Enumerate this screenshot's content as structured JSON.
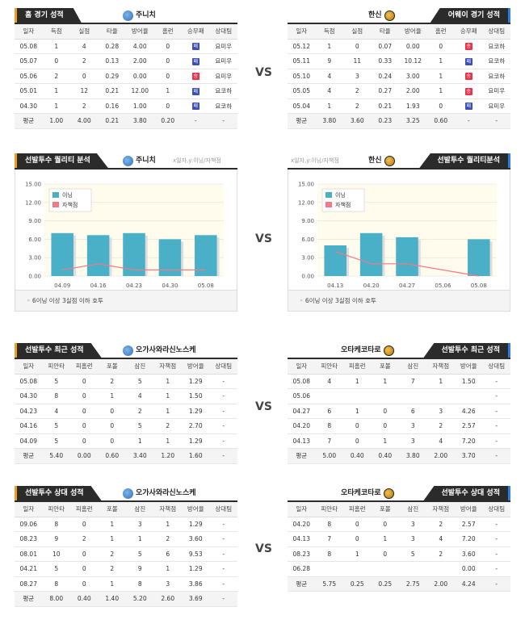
{
  "vs": "VS",
  "home_record": {
    "tab": "홈 경기 성적",
    "team": "주니치",
    "headers": [
      "일자",
      "득점",
      "실점",
      "타율",
      "방어율",
      "홈런",
      "승무패",
      "상대팀"
    ],
    "rows": [
      [
        "05.08",
        "1",
        "4",
        "0.28",
        "4.00",
        "0",
        "패",
        "요미우"
      ],
      [
        "05.07",
        "0",
        "2",
        "0.13",
        "2.00",
        "0",
        "패",
        "요미우"
      ],
      [
        "05.06",
        "2",
        "0",
        "0.29",
        "0.00",
        "0",
        "승",
        "요미우"
      ],
      [
        "05.01",
        "1",
        "12",
        "0.21",
        "12.00",
        "1",
        "패",
        "요코하"
      ],
      [
        "04.30",
        "1",
        "2",
        "0.16",
        "1.00",
        "0",
        "패",
        "요코하"
      ]
    ],
    "avg": [
      "평균",
      "1.00",
      "4.00",
      "0.21",
      "3.80",
      "0.20",
      "-",
      "-"
    ]
  },
  "away_record": {
    "tab": "어웨이 경기 성적",
    "team": "한신",
    "headers": [
      "일자",
      "득점",
      "실점",
      "타율",
      "방어율",
      "홈런",
      "승무패",
      "상대팀"
    ],
    "rows": [
      [
        "05.12",
        "1",
        "0",
        "0.07",
        "0.00",
        "0",
        "승",
        "요코하"
      ],
      [
        "05.11",
        "9",
        "11",
        "0.33",
        "10.12",
        "1",
        "패",
        "요코하"
      ],
      [
        "05.10",
        "4",
        "3",
        "0.24",
        "3.00",
        "1",
        "승",
        "요코하"
      ],
      [
        "05.05",
        "4",
        "2",
        "0.27",
        "2.00",
        "1",
        "승",
        "요미우"
      ],
      [
        "05.04",
        "1",
        "2",
        "0.21",
        "1.93",
        "0",
        "패",
        "요미우"
      ]
    ],
    "avg": [
      "평균",
      "3.80",
      "3.60",
      "0.23",
      "3.25",
      "0.60",
      "-",
      "-"
    ]
  },
  "quality_left": {
    "tab": "선발투수 퀄리티 분석",
    "team": "주니치",
    "note": "x일자,y:이닝/자책점",
    "legend": [
      "이닝",
      "자책점"
    ],
    "footer": "6이닝 이상 3실점 이하 호투"
  },
  "quality_right": {
    "tab": "선발투수 퀄리티분석",
    "team": "한신",
    "note": "x일자,y:이닝/자책점",
    "legend": [
      "이닝",
      "자책점"
    ],
    "footer": "6이닝 이상 3실점 이하 호투"
  },
  "chart_data": [
    {
      "type": "bar",
      "categories": [
        "04.09",
        "04.16",
        "04.23",
        "04.30",
        "05.08"
      ],
      "series": [
        {
          "name": "이닝",
          "values": [
            7,
            6.67,
            7,
            6,
            6.67
          ]
        },
        {
          "name": "자책점",
          "values": [
            1,
            2,
            1,
            1,
            1
          ]
        }
      ],
      "yticks": [
        "0.00",
        "3.00",
        "6.00",
        "9.00",
        "12.00",
        "15.00"
      ],
      "ylim": [
        0,
        15
      ],
      "grid": true,
      "legend": "top-left"
    },
    {
      "type": "bar",
      "categories": [
        "04.13",
        "04.20",
        "04.27",
        "05.06",
        "05.08"
      ],
      "series": [
        {
          "name": "이닝",
          "values": [
            5,
            7,
            6.33,
            0,
            6
          ]
        },
        {
          "name": "자책점",
          "values": [
            4,
            2,
            2,
            0,
            0
          ]
        }
      ],
      "yticks": [
        "0.00",
        "3.00",
        "6.00",
        "9.00",
        "12.00",
        "15.00"
      ],
      "ylim": [
        0,
        15
      ],
      "grid": true,
      "legend": "top-left"
    }
  ],
  "recent_left": {
    "tab": "선발투수 최근 성적",
    "team": "오가사와라신노스케",
    "headers": [
      "일자",
      "피안타",
      "피홈런",
      "포볼",
      "삼진",
      "자책점",
      "방어율",
      "상대팀"
    ],
    "rows": [
      [
        "05.08",
        "5",
        "0",
        "2",
        "5",
        "1",
        "1.29",
        "-"
      ],
      [
        "04.30",
        "8",
        "0",
        "1",
        "4",
        "1",
        "1.50",
        "-"
      ],
      [
        "04.23",
        "4",
        "0",
        "0",
        "2",
        "1",
        "1.29",
        "-"
      ],
      [
        "04.16",
        "5",
        "0",
        "0",
        "5",
        "2",
        "2.70",
        "-"
      ],
      [
        "04.09",
        "5",
        "0",
        "0",
        "1",
        "1",
        "1.29",
        "-"
      ]
    ],
    "avg": [
      "평균",
      "5.40",
      "0.00",
      "0.60",
      "3.40",
      "1.20",
      "1.60",
      "-"
    ]
  },
  "recent_right": {
    "tab": "선발투수 최근 성적",
    "team": "오타케코타로",
    "headers": [
      "일자",
      "피안타",
      "피홈런",
      "포볼",
      "삼진",
      "자책점",
      "방어율",
      "상대팀"
    ],
    "rows": [
      [
        "05.08",
        "4",
        "1",
        "1",
        "7",
        "1",
        "1.50",
        "-"
      ],
      [
        "05.06",
        "",
        "",
        "",
        "",
        "",
        "",
        "-"
      ],
      [
        "04.27",
        "6",
        "1",
        "0",
        "6",
        "3",
        "4.26",
        "-"
      ],
      [
        "04.20",
        "8",
        "0",
        "0",
        "3",
        "2",
        "2.57",
        "-"
      ],
      [
        "04.13",
        "7",
        "0",
        "1",
        "3",
        "4",
        "7.20",
        "-"
      ]
    ],
    "avg": [
      "평균",
      "5.00",
      "0.40",
      "0.40",
      "3.80",
      "2.00",
      "3.70",
      "-"
    ]
  },
  "vs_left": {
    "tab": "선발투수 상대 성적",
    "team": "오가사와라신노스케",
    "headers": [
      "일자",
      "피안타",
      "피홈런",
      "포볼",
      "삼진",
      "자책점",
      "방어율",
      "상대팀"
    ],
    "rows": [
      [
        "09.06",
        "8",
        "0",
        "1",
        "3",
        "1",
        "1.29",
        "-"
      ],
      [
        "08.23",
        "9",
        "2",
        "1",
        "1",
        "2",
        "3.60",
        "-"
      ],
      [
        "08.01",
        "10",
        "0",
        "2",
        "5",
        "6",
        "9.53",
        "-"
      ],
      [
        "04.21",
        "5",
        "0",
        "2",
        "9",
        "1",
        "1.29",
        "-"
      ],
      [
        "08.27",
        "8",
        "0",
        "1",
        "8",
        "3",
        "3.86",
        "-"
      ]
    ],
    "avg": [
      "평균",
      "8.00",
      "0.40",
      "1.40",
      "5.20",
      "2.60",
      "3.69",
      "-"
    ]
  },
  "vs_right": {
    "tab": "선발투수 상대 성적",
    "team": "오타케코타로",
    "headers": [
      "일자",
      "피안타",
      "피홈런",
      "포볼",
      "삼진",
      "자책점",
      "방어율",
      "상대팀"
    ],
    "rows": [
      [
        "04.20",
        "8",
        "0",
        "0",
        "3",
        "2",
        "2.57",
        "-"
      ],
      [
        "04.13",
        "7",
        "0",
        "1",
        "3",
        "4",
        "7.20",
        "-"
      ],
      [
        "08.23",
        "8",
        "1",
        "0",
        "5",
        "2",
        "3.60",
        "-"
      ],
      [
        "06.28",
        "",
        "",
        "",
        "",
        "",
        "0.00",
        "-"
      ]
    ],
    "avg": [
      "평균",
      "5.75",
      "0.25",
      "0.25",
      "2.75",
      "2.00",
      "4.24",
      "-"
    ]
  },
  "colors": {
    "win": "#e8334a",
    "loss": "#3a4fb8",
    "bar": "#4ab0c8",
    "era_line": "#f07a86"
  }
}
